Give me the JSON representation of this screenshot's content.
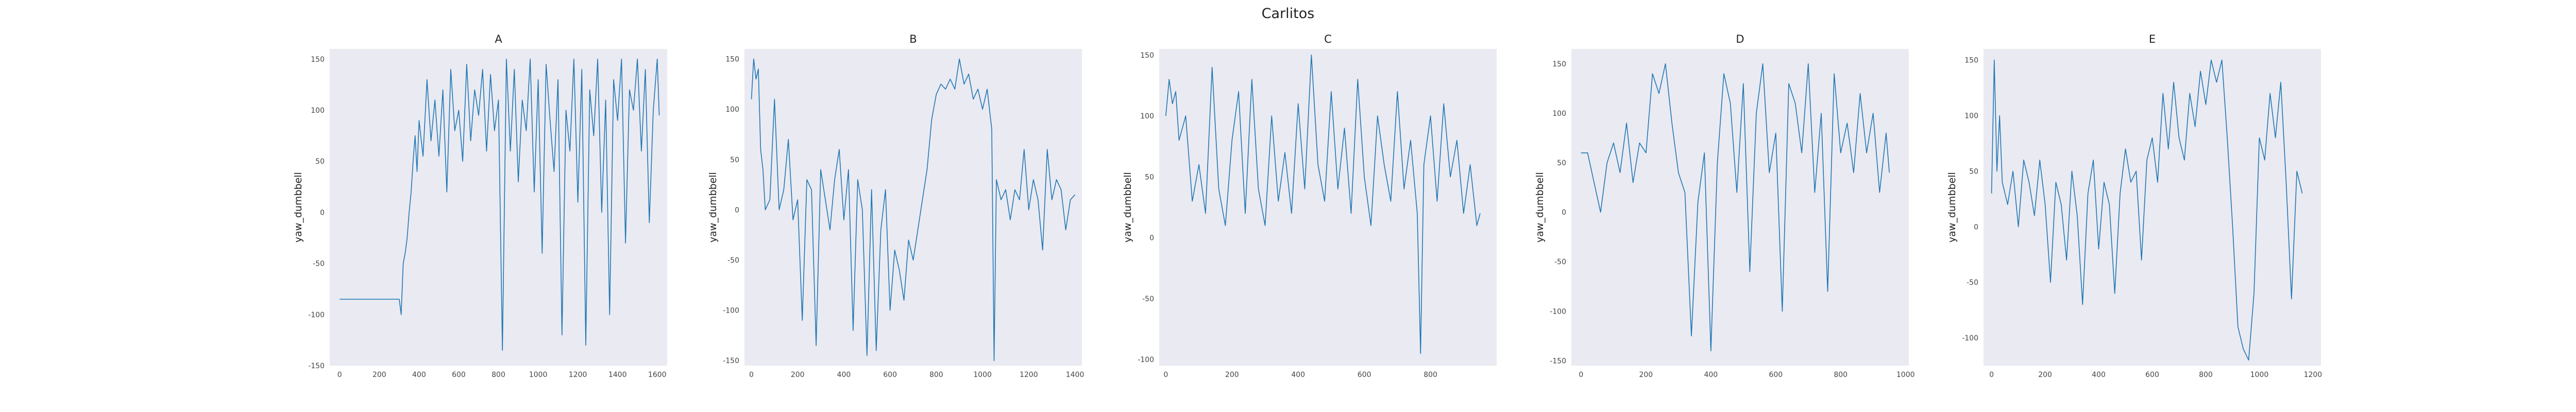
{
  "figure": {
    "title": "Carlitos"
  },
  "style": {
    "line_color": "#1f77b4",
    "panel_bg": "#eaeaf2"
  },
  "chart_data": [
    {
      "type": "line",
      "title": "A",
      "xlabel": "",
      "ylabel": "yaw_dumbbell",
      "xlim": [
        -50,
        1650
      ],
      "ylim": [
        -150,
        160
      ],
      "grid": false,
      "xticks": [
        0,
        200,
        400,
        600,
        800,
        1000,
        1200,
        1400,
        1600
      ],
      "yticks": [
        -150,
        -100,
        -50,
        0,
        50,
        100,
        150
      ],
      "series": [
        {
          "x": [
            0,
            100,
            200,
            300,
            310,
            320,
            330,
            340,
            350,
            360,
            370,
            380,
            390,
            400,
            420,
            440,
            460,
            480,
            500,
            520,
            540,
            560,
            580,
            600,
            620,
            640,
            660,
            680,
            700,
            720,
            740,
            760,
            780,
            800,
            820,
            840,
            860,
            880,
            900,
            920,
            940,
            960,
            980,
            1000,
            1020,
            1040,
            1060,
            1080,
            1100,
            1120,
            1140,
            1160,
            1180,
            1200,
            1220,
            1240,
            1260,
            1280,
            1300,
            1320,
            1340,
            1360,
            1380,
            1400,
            1420,
            1440,
            1460,
            1480,
            1500,
            1520,
            1540,
            1560,
            1580,
            1600,
            1610
          ],
          "y": [
            -85,
            -85,
            -85,
            -85,
            -100,
            -50,
            -40,
            -25,
            0,
            20,
            50,
            75,
            40,
            90,
            55,
            130,
            70,
            110,
            55,
            120,
            20,
            140,
            80,
            100,
            50,
            145,
            70,
            120,
            95,
            140,
            60,
            135,
            80,
            110,
            -135,
            150,
            60,
            140,
            30,
            110,
            80,
            150,
            20,
            130,
            -40,
            145,
            90,
            40,
            130,
            -120,
            100,
            60,
            150,
            10,
            140,
            -130,
            120,
            75,
            150,
            0,
            110,
            -100,
            130,
            90,
            150,
            -30,
            120,
            100,
            150,
            60,
            140,
            -10,
            100,
            150,
            95
          ]
        }
      ]
    },
    {
      "type": "line",
      "title": "B",
      "xlabel": "",
      "ylabel": "yaw_dumbbell",
      "xlim": [
        -30,
        1430
      ],
      "ylim": [
        -155,
        160
      ],
      "grid": false,
      "xticks": [
        0,
        200,
        400,
        600,
        800,
        1000,
        1200,
        1400
      ],
      "yticks": [
        -150,
        -100,
        -50,
        0,
        50,
        100,
        150
      ],
      "series": [
        {
          "x": [
            0,
            10,
            20,
            30,
            40,
            50,
            60,
            80,
            100,
            120,
            140,
            160,
            180,
            200,
            220,
            240,
            260,
            280,
            300,
            320,
            340,
            360,
            380,
            400,
            420,
            440,
            460,
            480,
            500,
            520,
            540,
            560,
            580,
            600,
            620,
            640,
            660,
            680,
            700,
            720,
            740,
            760,
            780,
            800,
            820,
            840,
            860,
            880,
            900,
            920,
            940,
            960,
            980,
            1000,
            1020,
            1040,
            1050,
            1060,
            1080,
            1100,
            1120,
            1140,
            1160,
            1180,
            1200,
            1220,
            1240,
            1260,
            1280,
            1300,
            1320,
            1340,
            1360,
            1380,
            1400
          ],
          "y": [
            110,
            150,
            130,
            140,
            60,
            40,
            0,
            10,
            110,
            0,
            20,
            70,
            -10,
            10,
            -110,
            30,
            20,
            -135,
            40,
            10,
            -20,
            30,
            60,
            -10,
            40,
            -120,
            30,
            0,
            -145,
            20,
            -140,
            -20,
            20,
            -100,
            -40,
            -60,
            -90,
            -30,
            -50,
            -20,
            10,
            40,
            90,
            115,
            125,
            120,
            130,
            120,
            150,
            125,
            135,
            110,
            120,
            100,
            120,
            80,
            -150,
            30,
            10,
            20,
            -10,
            20,
            10,
            60,
            0,
            30,
            10,
            -40,
            60,
            10,
            30,
            20,
            -20,
            10,
            15
          ]
        }
      ]
    },
    {
      "type": "line",
      "title": "C",
      "xlabel": "",
      "ylabel": "yaw_dumbbell",
      "xlim": [
        -20,
        1000
      ],
      "ylim": [
        -105,
        155
      ],
      "grid": false,
      "xticks": [
        0,
        200,
        400,
        600,
        800
      ],
      "yticks": [
        -100,
        -50,
        0,
        50,
        100,
        150
      ],
      "series": [
        {
          "x": [
            0,
            10,
            20,
            30,
            40,
            60,
            80,
            100,
            120,
            140,
            160,
            180,
            200,
            220,
            240,
            260,
            280,
            300,
            320,
            340,
            360,
            380,
            400,
            420,
            440,
            460,
            480,
            500,
            520,
            540,
            560,
            580,
            600,
            620,
            640,
            660,
            680,
            700,
            720,
            740,
            760,
            770,
            780,
            800,
            820,
            840,
            860,
            880,
            900,
            920,
            940,
            950
          ],
          "y": [
            100,
            130,
            110,
            120,
            80,
            100,
            30,
            60,
            20,
            140,
            40,
            10,
            80,
            120,
            20,
            130,
            40,
            10,
            100,
            30,
            70,
            20,
            110,
            40,
            150,
            60,
            30,
            120,
            40,
            90,
            20,
            130,
            50,
            10,
            100,
            60,
            30,
            120,
            40,
            80,
            20,
            -95,
            60,
            100,
            30,
            110,
            50,
            80,
            20,
            60,
            10,
            20
          ]
        }
      ]
    },
    {
      "type": "line",
      "title": "D",
      "xlabel": "",
      "ylabel": "yaw_dumbbell",
      "xlim": [
        -30,
        1010
      ],
      "ylim": [
        -155,
        165
      ],
      "grid": false,
      "xticks": [
        0,
        200,
        400,
        600,
        800,
        1000
      ],
      "yticks": [
        -150,
        -100,
        -50,
        0,
        50,
        100,
        150
      ],
      "series": [
        {
          "x": [
            0,
            20,
            40,
            60,
            80,
            100,
            120,
            140,
            160,
            180,
            200,
            220,
            240,
            260,
            280,
            300,
            320,
            340,
            360,
            380,
            400,
            420,
            440,
            460,
            480,
            500,
            520,
            540,
            560,
            580,
            600,
            620,
            640,
            660,
            680,
            700,
            720,
            740,
            760,
            780,
            800,
            820,
            840,
            860,
            880,
            900,
            920,
            940,
            950
          ],
          "y": [
            60,
            60,
            30,
            0,
            50,
            70,
            40,
            90,
            30,
            70,
            60,
            140,
            120,
            150,
            90,
            40,
            20,
            -125,
            10,
            60,
            -140,
            50,
            140,
            110,
            20,
            130,
            -60,
            100,
            150,
            40,
            80,
            -100,
            130,
            110,
            60,
            150,
            20,
            100,
            -80,
            140,
            60,
            90,
            40,
            120,
            60,
            100,
            20,
            80,
            40
          ]
        }
      ]
    },
    {
      "type": "line",
      "title": "E",
      "xlabel": "",
      "ylabel": "yaw_dumbbell",
      "xlim": [
        -30,
        1230
      ],
      "ylim": [
        -125,
        160
      ],
      "grid": false,
      "xticks": [
        0,
        200,
        400,
        600,
        800,
        1000,
        1200
      ],
      "yticks": [
        -100,
        -50,
        0,
        50,
        100,
        150
      ],
      "series": [
        {
          "x": [
            0,
            10,
            20,
            30,
            40,
            60,
            80,
            100,
            120,
            140,
            160,
            180,
            200,
            220,
            240,
            260,
            280,
            300,
            320,
            340,
            360,
            380,
            400,
            420,
            440,
            460,
            480,
            500,
            520,
            540,
            560,
            580,
            600,
            620,
            640,
            660,
            680,
            700,
            720,
            740,
            760,
            780,
            800,
            820,
            840,
            860,
            880,
            900,
            920,
            940,
            960,
            980,
            1000,
            1020,
            1040,
            1060,
            1080,
            1100,
            1120,
            1140,
            1160
          ],
          "y": [
            30,
            150,
            50,
            100,
            40,
            20,
            50,
            0,
            60,
            40,
            10,
            60,
            20,
            -50,
            40,
            20,
            -30,
            50,
            10,
            -70,
            30,
            60,
            -20,
            40,
            20,
            -60,
            30,
            70,
            40,
            50,
            -30,
            60,
            80,
            40,
            120,
            70,
            130,
            80,
            60,
            120,
            90,
            140,
            110,
            150,
            130,
            150,
            80,
            0,
            -90,
            -110,
            -120,
            -60,
            80,
            60,
            120,
            80,
            130,
            40,
            -65,
            50,
            30
          ]
        }
      ]
    }
  ]
}
